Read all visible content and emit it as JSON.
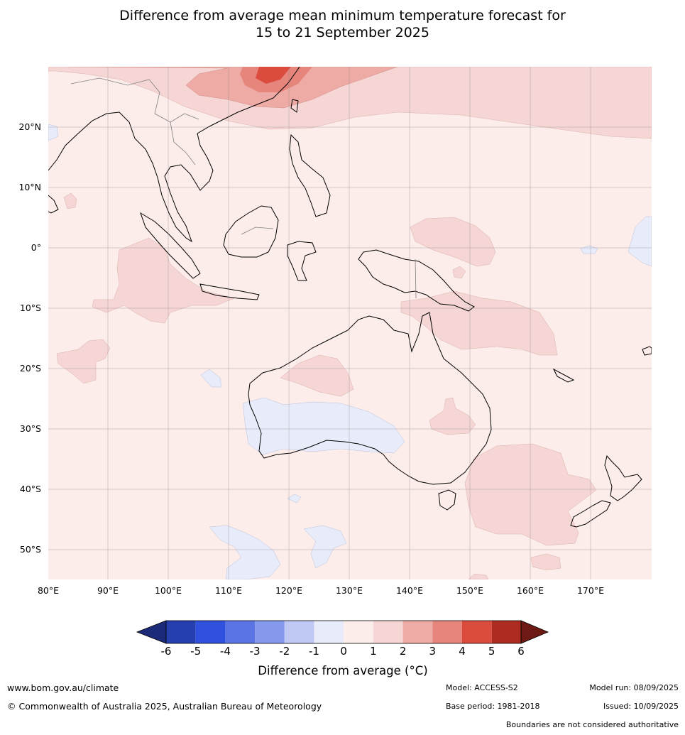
{
  "title": {
    "line1": "Difference from average mean minimum temperature forecast for",
    "line2": "15 to 21 September 2025"
  },
  "map": {
    "lon_ticks": [
      "80°E",
      "90°E",
      "100°E",
      "110°E",
      "120°E",
      "130°E",
      "140°E",
      "150°E",
      "160°E",
      "170°E"
    ],
    "lat_ticks": [
      "20°N",
      "10°N",
      "0°",
      "10°S",
      "20°S",
      "30°S",
      "40°S",
      "50°S"
    ],
    "colors": {
      "background_0_1": "#fcecea",
      "band_1_2": "#f5d6d4",
      "band_2_3": "#eeaaa4",
      "band_3_4": "#e6857c",
      "band_4_5": "#db4c3f",
      "band_m1_0": "#e8ecfa",
      "coast": "#000000",
      "border": "#808080"
    }
  },
  "colorbar": {
    "ticks": [
      "-6",
      "-5",
      "-4",
      "-3",
      "-2",
      "-1",
      "0",
      "1",
      "2",
      "3",
      "4",
      "5",
      "6"
    ],
    "colors": [
      "#1c2a7a",
      "#263fae",
      "#3050e0",
      "#5a74e4",
      "#8498ec",
      "#bfc9f4",
      "#e8ecfa",
      "#fcecea",
      "#f5d6d4",
      "#eeaaa4",
      "#e6857c",
      "#db4c3f",
      "#ae2b21",
      "#6e1a14"
    ],
    "label": "Difference from average (°C)"
  },
  "footer": {
    "website": "www.bom.gov.au/climate",
    "copyright": "© Commonwealth of Australia 2025, Australian Bureau of Meteorology",
    "model": "Model: ACCESS-S2",
    "model_run": "Model run: 08/09/2025",
    "base_period": "Base period: 1981-2018",
    "issued": "Issued: 10/09/2025",
    "disclaimer": "Boundaries are not considered authoritative"
  }
}
